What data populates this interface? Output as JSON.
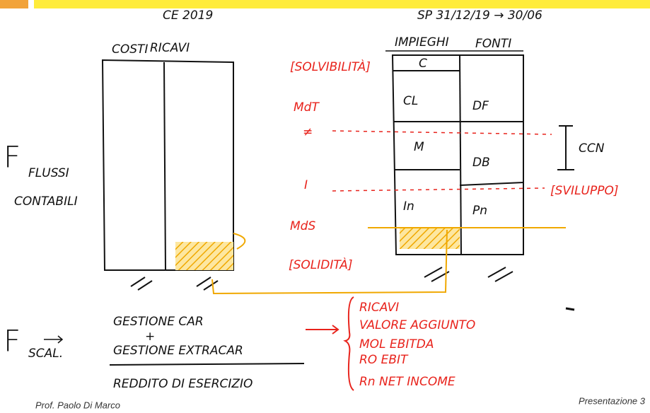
{
  "header": {
    "left": "CE 2019",
    "right": "SP 31/12/19 → 30/06"
  },
  "income_statement": {
    "costs": "COSTI",
    "revenues": "RICAVI"
  },
  "flows_left": {
    "symbol": "F",
    "subscript": "FLUSSI",
    "note": "CONTABILI"
  },
  "balance_sheet": {
    "assets": "IMPIEGHI",
    "sources": "FONTI",
    "cells": {
      "c": "C",
      "cl": "CL",
      "df": "DF",
      "m": "M",
      "db": "DB",
      "in": "In",
      "pn": "Pn"
    }
  },
  "red_notes": {
    "solvibilita": "[SOLVIBILITÀ]",
    "mdt": "MdT",
    "neq1": "≠",
    "neq2": "I",
    "mds": "MdS",
    "solidita": "[SOLIDITÀ]",
    "ccn": "CCN",
    "sviluppo": "[SVILUPPO]"
  },
  "flows_bottom": {
    "symbol": "F",
    "subscript": "SCAL.",
    "line1": "GESTIONE CAR",
    "plus": "+",
    "line2": "GESTIONE EXTRACAR",
    "result": "REDDITO DI ESERCIZIO"
  },
  "margins": [
    "RICAVI",
    "VALORE AGGIUNTO",
    "MOL  EBITDA",
    "RO  EBIT",
    "Rn  NET INCOME"
  ],
  "footer": {
    "author": "Prof. Paolo Di Marco",
    "slide": "Presentazione 3"
  }
}
